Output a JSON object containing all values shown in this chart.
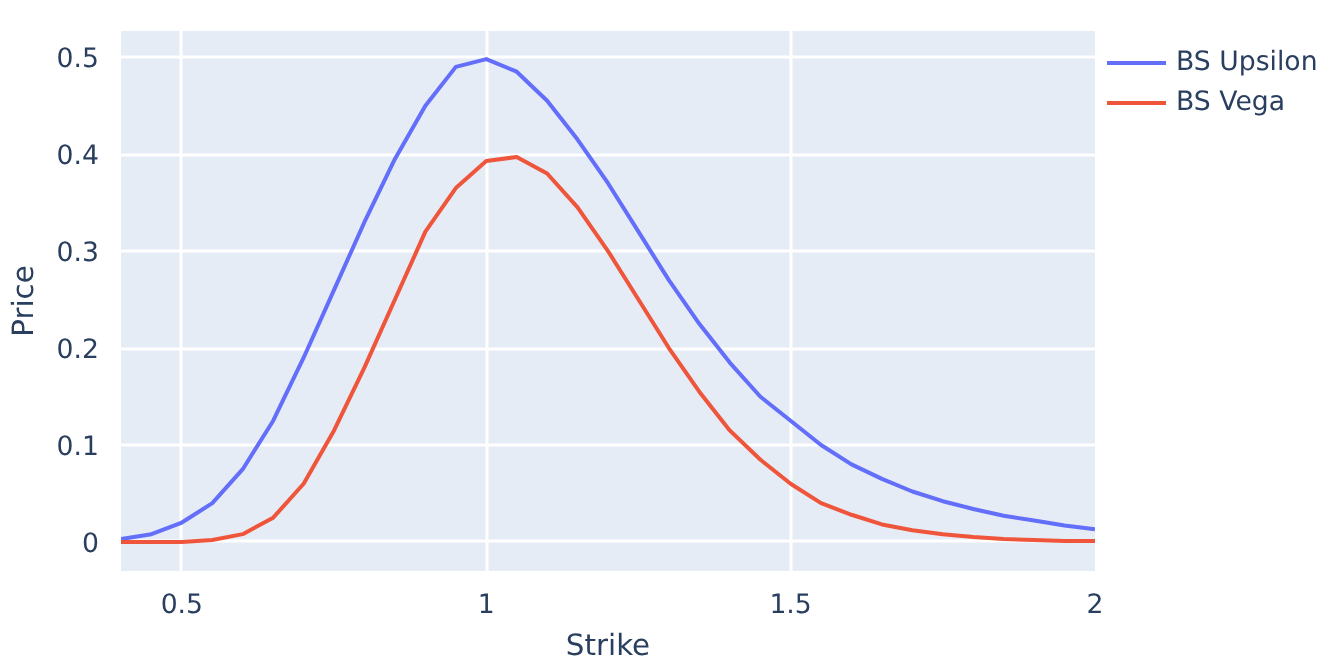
{
  "chart_data": {
    "type": "line",
    "xlabel": "Strike",
    "ylabel": "Price",
    "x": [
      0.4,
      0.45,
      0.5,
      0.55,
      0.6,
      0.65,
      0.7,
      0.75,
      0.8,
      0.85,
      0.9,
      0.95,
      1.0,
      1.05,
      1.1,
      1.15,
      1.2,
      1.25,
      1.3,
      1.35,
      1.4,
      1.45,
      1.5,
      1.55,
      1.6,
      1.65,
      1.7,
      1.75,
      1.8,
      1.85,
      1.9,
      1.95,
      2.0
    ],
    "series": [
      {
        "name": "BS Upsilon",
        "color": "#636efa",
        "values": [
          0.003,
          0.008,
          0.02,
          0.04,
          0.075,
          0.125,
          0.19,
          0.26,
          0.33,
          0.395,
          0.45,
          0.49,
          0.498,
          0.485,
          0.455,
          0.415,
          0.37,
          0.32,
          0.27,
          0.225,
          0.185,
          0.15,
          0.125,
          0.1,
          0.08,
          0.065,
          0.052,
          0.042,
          0.034,
          0.027,
          0.022,
          0.017,
          0.013
        ]
      },
      {
        "name": "BS Vega",
        "color": "#ef553b",
        "values": [
          0,
          0,
          0,
          0.002,
          0.008,
          0.025,
          0.06,
          0.115,
          0.18,
          0.25,
          0.32,
          0.365,
          0.393,
          0.397,
          0.38,
          0.345,
          0.3,
          0.25,
          0.2,
          0.155,
          0.115,
          0.085,
          0.06,
          0.04,
          0.028,
          0.018,
          0.012,
          0.008,
          0.005,
          0.003,
          0.002,
          0.001,
          0.001
        ]
      }
    ],
    "xlim": [
      0.4,
      2
    ],
    "ylim": [
      -0.03,
      0.527
    ],
    "xticks": [
      0.5,
      1,
      1.5,
      2
    ],
    "yticks": [
      0,
      0.1,
      0.2,
      0.3,
      0.4,
      0.5
    ],
    "grid": true,
    "legend": "top right",
    "marker": "none",
    "line_style": "solid"
  }
}
